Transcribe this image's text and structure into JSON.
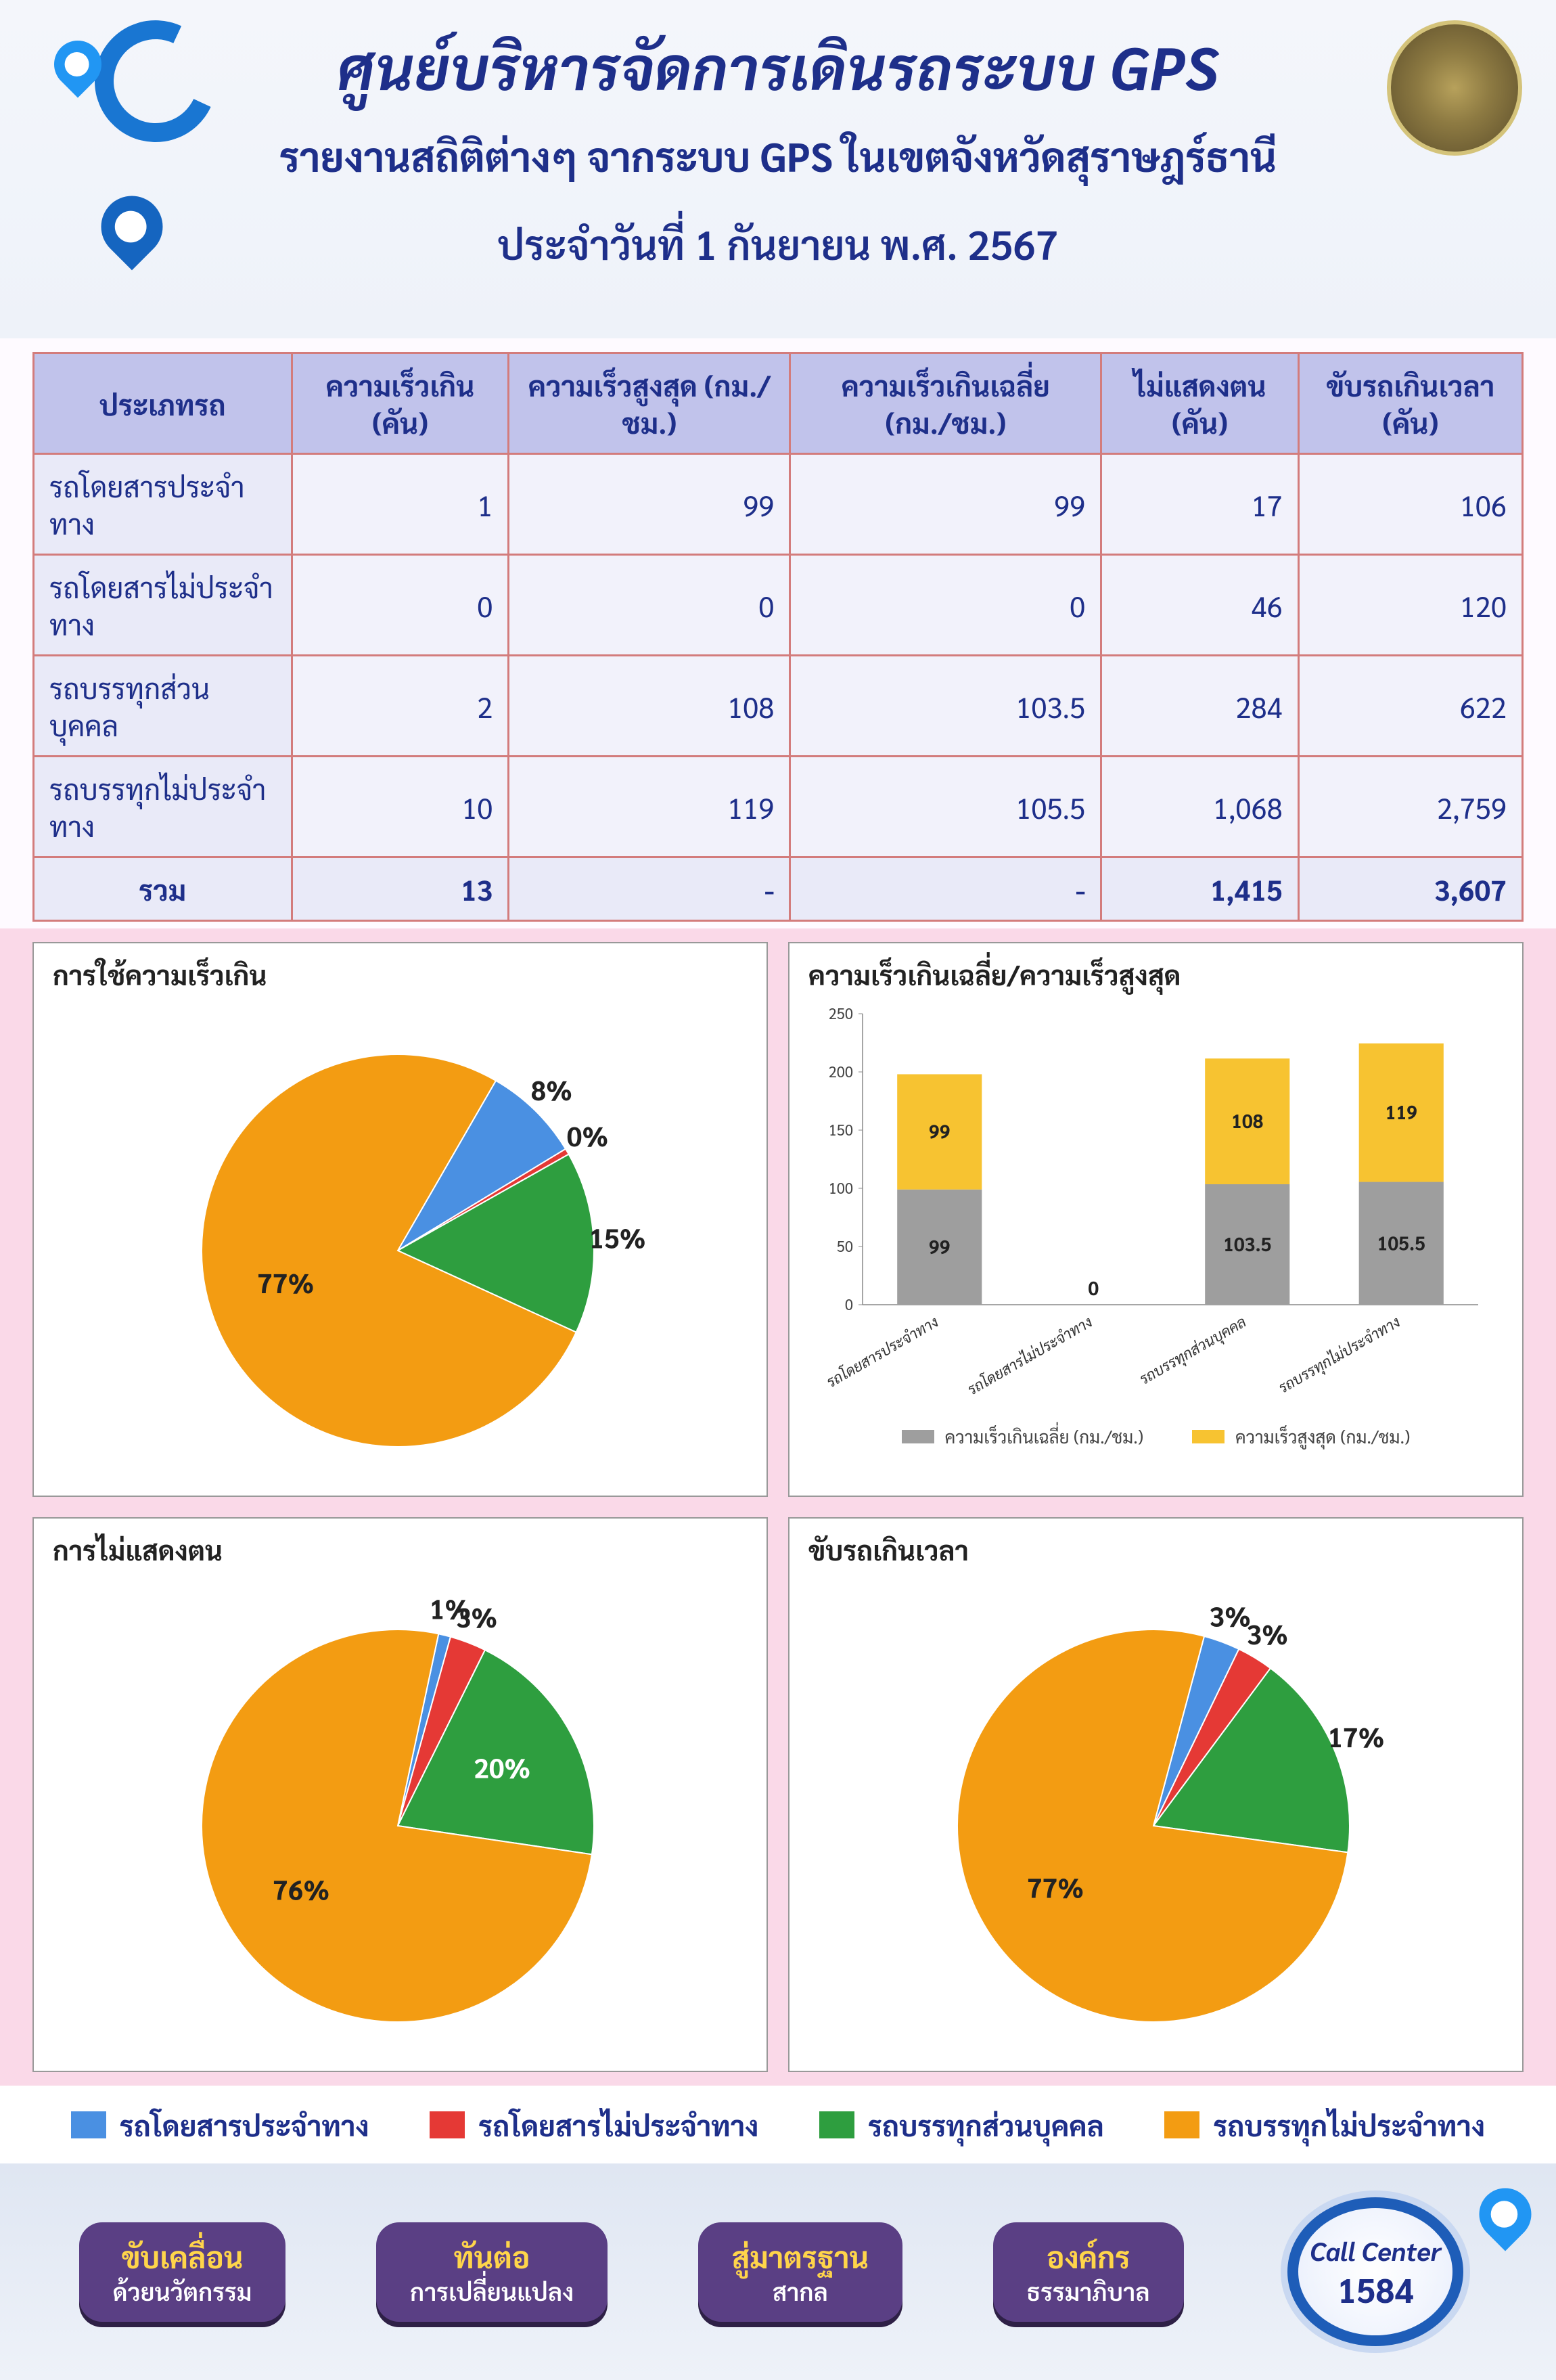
{
  "header": {
    "title": "ศูนย์บริหารจัดการเดินรถระบบ GPS",
    "subtitle": "รายงานสถิติต่างๆ จากระบบ GPS ในเขตจังหวัดสุราษฎร์ธานี",
    "date_line": "ประจำวันที่  1 กันยายน  พ.ศ. 2567"
  },
  "palette": {
    "blue": "#4a90e2",
    "red": "#e53935",
    "green": "#2e9e3f",
    "orange": "#f39c12",
    "grey": "#9e9e9e",
    "yellow": "#f7c331"
  },
  "table": {
    "columns": [
      "ประเภทรถ",
      "ความเร็วเกิน (คัน)",
      "ความเร็วสูงสุด (กม./ชม.)",
      "ความเร็วเกินเฉลี่ย (กม./ชม.)",
      "ไม่แสดงตน (คัน)",
      "ขับรถเกินเวลา (คัน)"
    ],
    "rows": [
      [
        "รถโดยสารประจำทาง",
        "1",
        "99",
        "99",
        "17",
        "106"
      ],
      [
        "รถโดยสารไม่ประจำทาง",
        "0",
        "0",
        "0",
        "46",
        "120"
      ],
      [
        "รถบรรทุกส่วนบุคคล",
        "2",
        "108",
        "103.5",
        "284",
        "622"
      ],
      [
        "รถบรรทุกไม่ประจำทาง",
        "10",
        "119",
        "105.5",
        "1,068",
        "2,759"
      ]
    ],
    "sum": [
      "รวม",
      "13",
      "-",
      "-",
      "1,415",
      "3,607"
    ],
    "header_bg": "#c1c3eb",
    "border_color": "#d37c7c",
    "label_bg": "#e9eaf8",
    "cell_bg": "#f2f2fb",
    "text_color": "#1e2f8a",
    "font_size_pt": 32
  },
  "pie_speed": {
    "type": "pie",
    "title": "การใช้ความเร็วเกิน",
    "slices": [
      {
        "label": "8%",
        "pct": 8,
        "color": "#4a90e2"
      },
      {
        "label": "0%",
        "pct": 0.5,
        "color": "#e53935"
      },
      {
        "label": "15%",
        "pct": 15,
        "color": "#2e9e3f"
      },
      {
        "label": "77%",
        "pct": 76.5,
        "color": "#f39c12"
      }
    ],
    "label_fontsize": 40,
    "start_angle_deg": -60
  },
  "bar_speed": {
    "type": "stacked-bar",
    "title": "ความเร็วเกินเฉลี่ย/ความเร็วสูงสุด",
    "categories": [
      "รถโดยสารประจำทาง",
      "รถโดยสารไม่ประจำทาง",
      "รถบรรทุกส่วนบุคคล",
      "รถบรรทุกไม่ประจำทาง"
    ],
    "series": [
      {
        "name": "ความเร็วเกินเฉลี่ย (กม./ชม.)",
        "color": "#9e9e9e",
        "values": [
          99,
          0,
          103.5,
          105.5
        ]
      },
      {
        "name": "ความเร็วสูงสุด (กม./ชม.)",
        "color": "#f7c331",
        "values": [
          99,
          0,
          108,
          119
        ]
      }
    ],
    "y": {
      "min": 0,
      "max": 250,
      "step": 50
    },
    "bar_width": 0.55,
    "label_fontsize": 28,
    "axis_fontsize": 22,
    "zero_label": "0"
  },
  "pie_noshow": {
    "type": "pie",
    "title": "การไม่แสดงตน",
    "slices": [
      {
        "label": "1%",
        "pct": 1,
        "color": "#4a90e2"
      },
      {
        "label": "3%",
        "pct": 3,
        "color": "#e53935"
      },
      {
        "label": "20%",
        "pct": 20,
        "color": "#2e9e3f",
        "white": true
      },
      {
        "label": "76%",
        "pct": 76,
        "color": "#f39c12"
      }
    ],
    "label_fontsize": 40,
    "start_angle_deg": -78
  },
  "pie_overtime": {
    "type": "pie",
    "title": "ขับรถเกินเวลา",
    "slices": [
      {
        "label": "3%",
        "pct": 3,
        "color": "#4a90e2"
      },
      {
        "label": "3%",
        "pct": 3,
        "color": "#e53935"
      },
      {
        "label": "17%",
        "pct": 17,
        "color": "#2e9e3f",
        "white": true
      },
      {
        "label": "77%",
        "pct": 77,
        "color": "#f39c12"
      }
    ],
    "label_fontsize": 40,
    "start_angle_deg": -75
  },
  "legend": {
    "items": [
      {
        "label": "รถโดยสารประจำทาง",
        "color": "#4a90e2"
      },
      {
        "label": "รถโดยสารไม่ประจำทาง",
        "color": "#e53935"
      },
      {
        "label": "รถบรรทุกส่วนบุคคล",
        "color": "#2e9e3f"
      },
      {
        "label": "รถบรรทุกไม่ประจำทาง",
        "color": "#f39c12"
      }
    ],
    "font_size_pt": 32
  },
  "footer": {
    "badges": [
      {
        "l1": "ขับเคลื่อน",
        "l2": "ด้วยนวัตกรรม"
      },
      {
        "l1": "ทันต่อ",
        "l2": "การเปลี่ยนแปลง"
      },
      {
        "l1": "สู่มาตรฐาน",
        "l2": "สากล"
      },
      {
        "l1": "องค์กร",
        "l2": "ธรรมาภิบาล"
      }
    ],
    "badge_bg": "#5a3f84",
    "badge_l1_color": "#ffd54a",
    "badge_l2_color": "#ffffff",
    "call": {
      "l1": "Call Center",
      "l2": "1584",
      "ring_color": "#1e5db8"
    }
  }
}
